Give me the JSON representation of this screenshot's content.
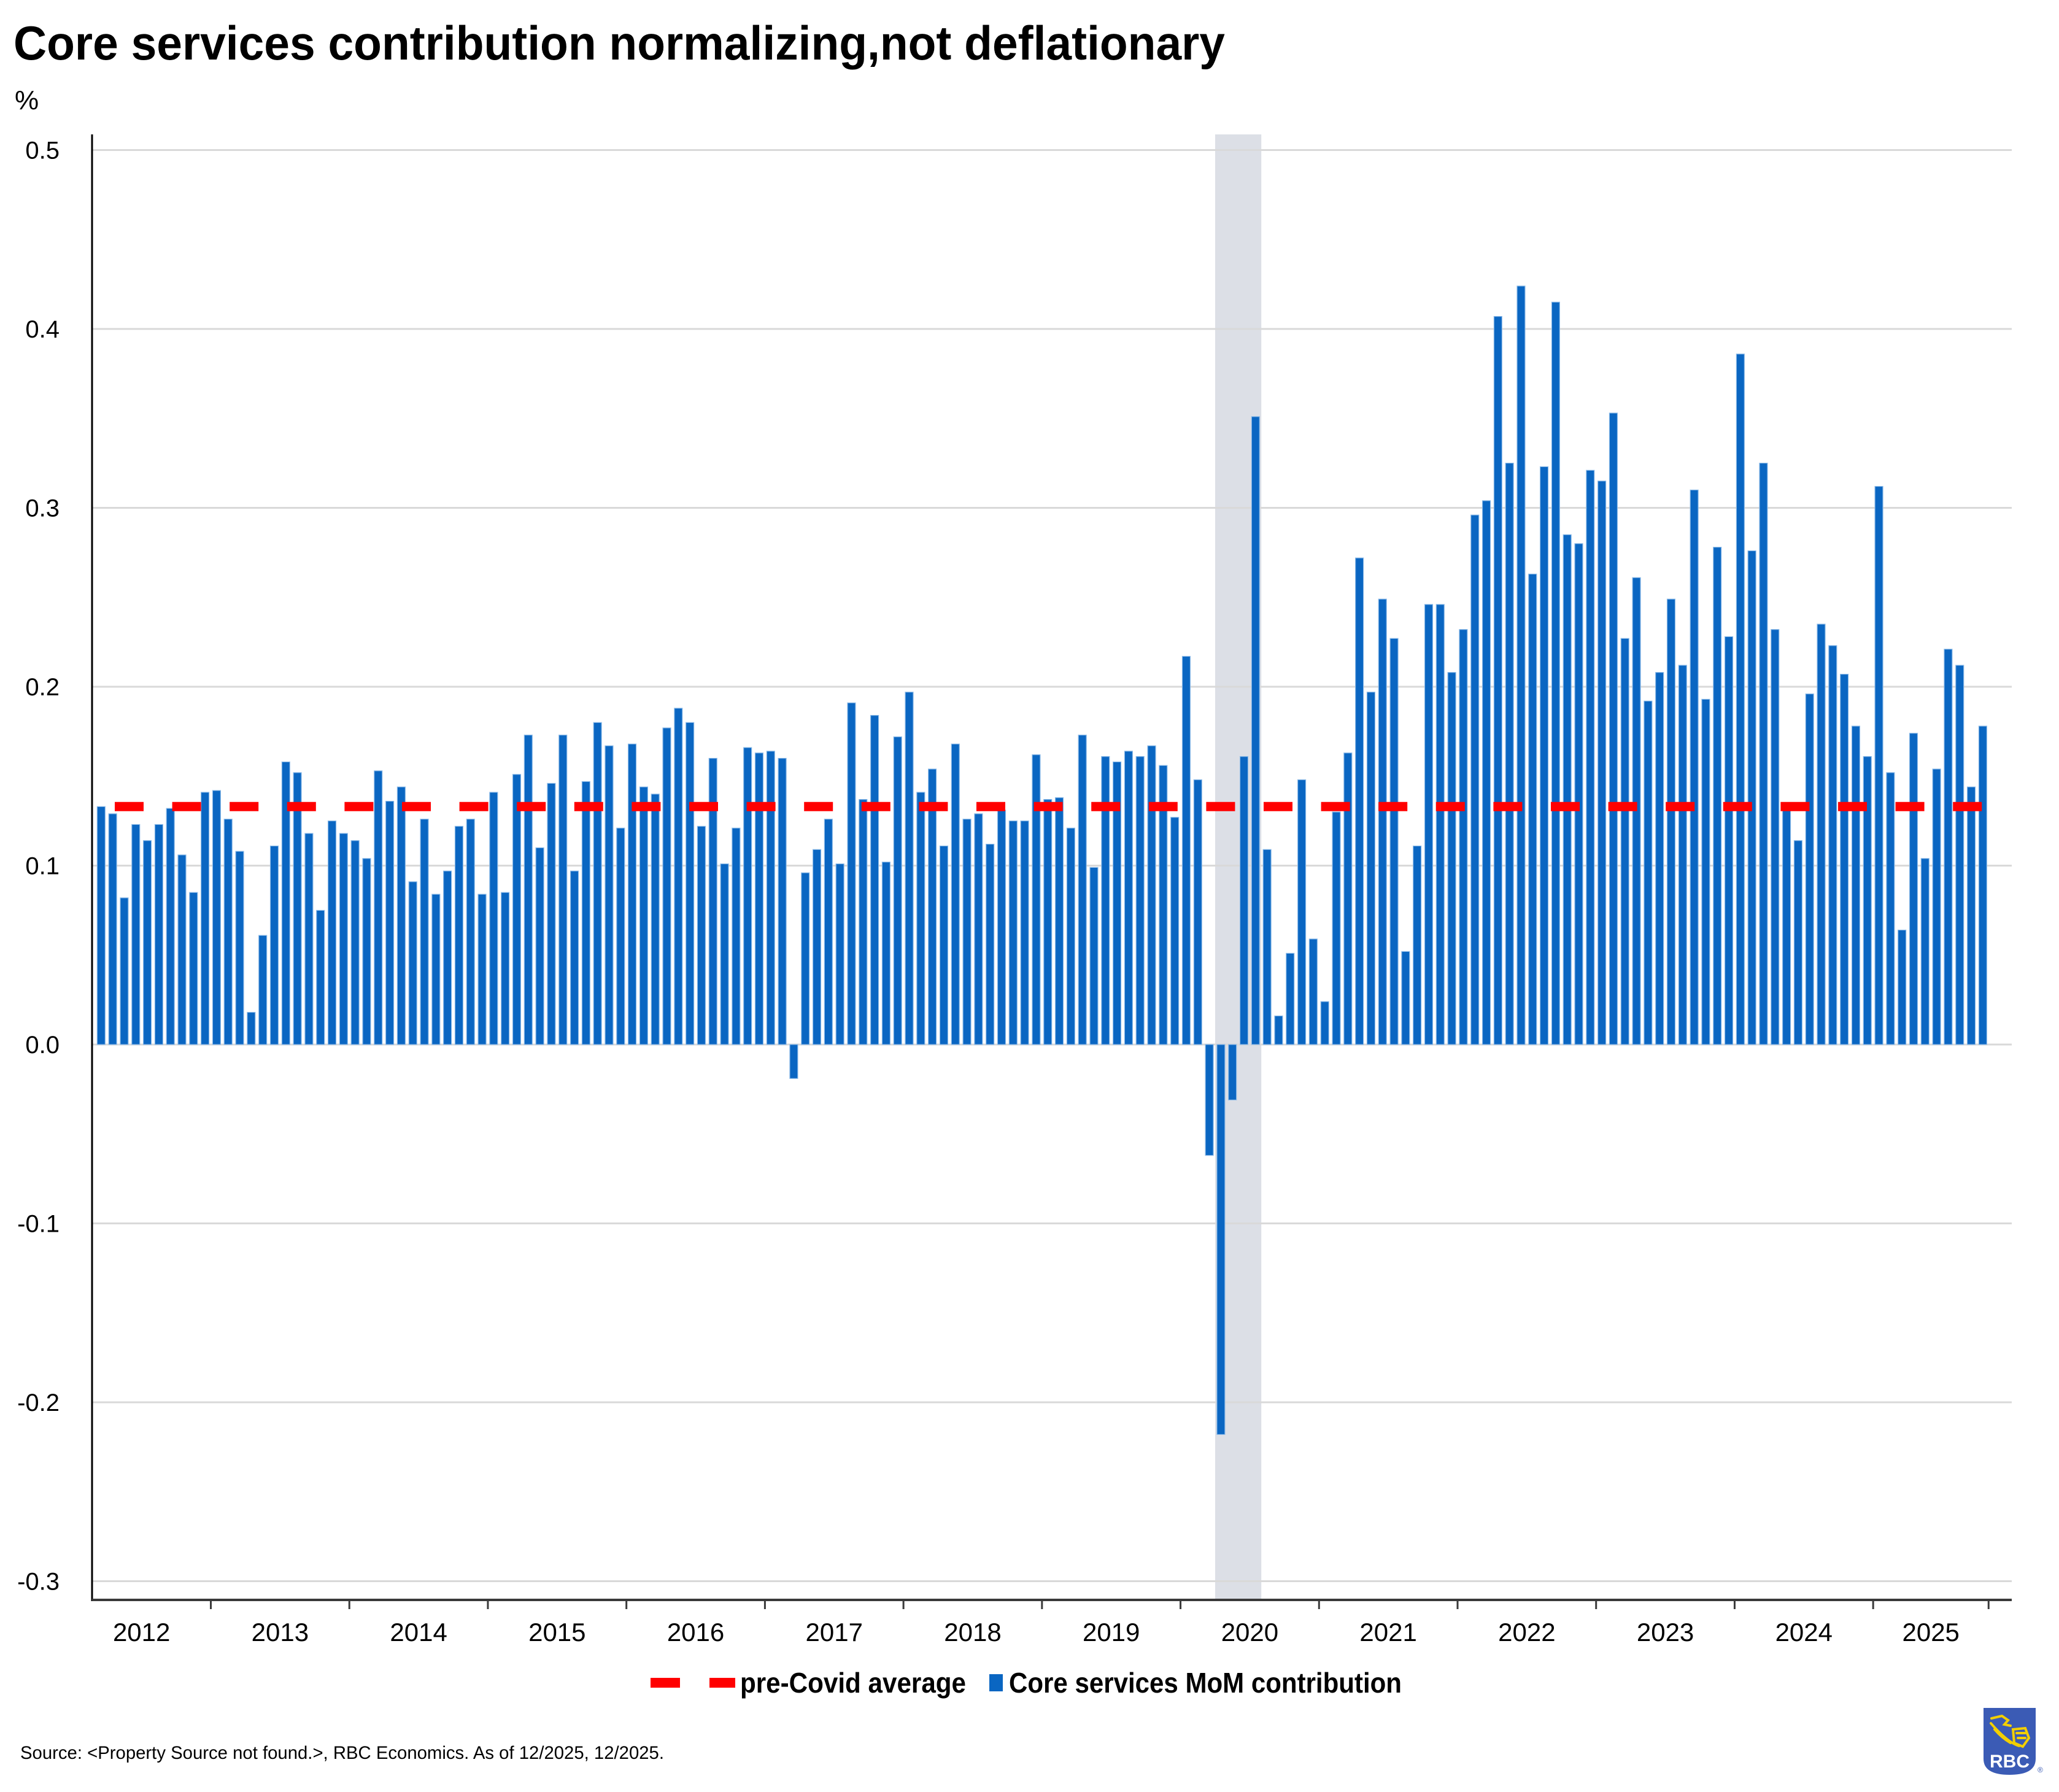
{
  "chart_data": {
    "type": "bar",
    "title": "Core services contribution normalizing,not deflationary",
    "xlabel": "",
    "ylabel": "%",
    "ylim": [
      -0.3,
      0.5
    ],
    "yticks": [
      0.5,
      0.4,
      0.3,
      0.2,
      0.1,
      0.0,
      -0.1,
      -0.2,
      -0.3
    ],
    "ytick_labels": [
      "0.5",
      "0.4",
      "0.3",
      "0.2",
      "0.1",
      "0.0",
      "-0.1",
      "-0.2",
      "-0.3"
    ],
    "xtick_labels": [
      "2012",
      "2013",
      "2014",
      "2015",
      "2016",
      "2017",
      "2018",
      "2019",
      "2020",
      "2021",
      "2022",
      "2023",
      "2024",
      "2025"
    ],
    "frequency": "monthly",
    "grid": true,
    "legend_position": "bottom",
    "categories": [
      "2012-03",
      "2012-04",
      "2012-05",
      "2012-06",
      "2012-07",
      "2012-08",
      "2012-09",
      "2012-10",
      "2012-11",
      "2012-12",
      "2013-01",
      "2013-02",
      "2013-03",
      "2013-04",
      "2013-05",
      "2013-06",
      "2013-07",
      "2013-08",
      "2013-09",
      "2013-10",
      "2013-11",
      "2013-12",
      "2014-01",
      "2014-02",
      "2014-03",
      "2014-04",
      "2014-05",
      "2014-06",
      "2014-07",
      "2014-08",
      "2014-09",
      "2014-10",
      "2014-11",
      "2014-12",
      "2015-01",
      "2015-02",
      "2015-03",
      "2015-04",
      "2015-05",
      "2015-06",
      "2015-07",
      "2015-08",
      "2015-09",
      "2015-10",
      "2015-11",
      "2015-12",
      "2016-01",
      "2016-02",
      "2016-03",
      "2016-04",
      "2016-05",
      "2016-06",
      "2016-07",
      "2016-08",
      "2016-09",
      "2016-10",
      "2016-11",
      "2016-12",
      "2017-01",
      "2017-02",
      "2017-03",
      "2017-04",
      "2017-05",
      "2017-06",
      "2017-07",
      "2017-08",
      "2017-09",
      "2017-10",
      "2017-11",
      "2017-12",
      "2018-01",
      "2018-02",
      "2018-03",
      "2018-04",
      "2018-05",
      "2018-06",
      "2018-07",
      "2018-08",
      "2018-09",
      "2018-10",
      "2018-11",
      "2018-12",
      "2019-01",
      "2019-02",
      "2019-03",
      "2019-04",
      "2019-05",
      "2019-06",
      "2019-07",
      "2019-08",
      "2019-09",
      "2019-10",
      "2019-11",
      "2019-12",
      "2020-01",
      "2020-02",
      "2020-03",
      "2020-04",
      "2020-05",
      "2020-06",
      "2020-07",
      "2020-08",
      "2020-09",
      "2020-10",
      "2020-11",
      "2020-12",
      "2021-01",
      "2021-02",
      "2021-03",
      "2021-04",
      "2021-05",
      "2021-06",
      "2021-07",
      "2021-08",
      "2021-09",
      "2021-10",
      "2021-11",
      "2021-12",
      "2022-01",
      "2022-02",
      "2022-03",
      "2022-04",
      "2022-05",
      "2022-06",
      "2022-07",
      "2022-08",
      "2022-09",
      "2022-10",
      "2022-11",
      "2022-12",
      "2023-01",
      "2023-02",
      "2023-03",
      "2023-04",
      "2023-05",
      "2023-06",
      "2023-07",
      "2023-08",
      "2023-09",
      "2023-10",
      "2023-11",
      "2023-12",
      "2024-01",
      "2024-02",
      "2024-03",
      "2024-04",
      "2024-05",
      "2024-06",
      "2024-07",
      "2024-08",
      "2024-09",
      "2024-10",
      "2024-11",
      "2024-12",
      "2025-01",
      "2025-02",
      "2025-03",
      "2025-04",
      "2025-05",
      "2025-06",
      "2025-07",
      "2025-08",
      "2025-09",
      "2025-10"
    ],
    "series": [
      {
        "name": "Core services MoM contribution",
        "type": "bar",
        "color": "#0a66c2",
        "values": [
          0.133,
          0.129,
          0.082,
          0.123,
          0.114,
          0.123,
          0.132,
          0.106,
          0.085,
          0.141,
          0.142,
          0.126,
          0.108,
          0.018,
          0.061,
          0.111,
          0.158,
          0.152,
          0.118,
          0.075,
          0.125,
          0.118,
          0.114,
          0.104,
          0.153,
          0.136,
          0.144,
          0.091,
          0.126,
          0.084,
          0.097,
          0.122,
          0.126,
          0.084,
          0.141,
          0.085,
          0.151,
          0.173,
          0.11,
          0.146,
          0.173,
          0.097,
          0.147,
          0.18,
          0.167,
          0.121,
          0.168,
          0.144,
          0.14,
          0.177,
          0.188,
          0.18,
          0.122,
          0.16,
          0.101,
          0.121,
          0.166,
          0.163,
          0.164,
          0.16,
          -0.019,
          0.096,
          0.109,
          0.126,
          0.101,
          0.191,
          0.137,
          0.184,
          0.102,
          0.172,
          0.197,
          0.141,
          0.154,
          0.111,
          0.168,
          0.126,
          0.129,
          0.112,
          0.131,
          0.125,
          0.125,
          0.162,
          0.137,
          0.138,
          0.121,
          0.173,
          0.099,
          0.161,
          0.158,
          0.164,
          0.161,
          0.167,
          0.156,
          0.127,
          0.217,
          0.148,
          -0.062,
          -0.218,
          -0.031,
          0.161,
          0.351,
          0.109,
          0.016,
          0.051,
          0.148,
          0.059,
          0.024,
          0.13,
          0.163,
          0.272,
          0.197,
          0.249,
          0.227,
          0.052,
          0.111,
          0.246,
          0.246,
          0.208,
          0.232,
          0.296,
          0.304,
          0.407,
          0.325,
          0.424,
          0.263,
          0.323,
          0.415,
          0.285,
          0.28,
          0.321,
          0.315,
          0.353,
          0.227,
          0.261,
          0.192,
          0.208,
          0.249,
          0.212,
          0.31,
          0.193,
          0.278,
          0.228,
          0.386,
          0.276,
          0.325,
          0.232,
          0.132,
          0.114,
          0.196,
          0.235,
          0.223,
          0.207,
          0.178,
          0.161,
          0.312,
          0.152,
          0.064,
          0.174,
          0.104,
          0.154,
          0.221,
          0.212,
          0.144,
          0.178
        ]
      },
      {
        "name": "pre-Covid average",
        "type": "line",
        "style": "dashed",
        "color": "#ff0000",
        "value": 0.133
      }
    ],
    "shaded_period": {
      "start": "2020-04",
      "end": "2020-07",
      "color": "#dcdfe6"
    },
    "legend": [
      {
        "label": "pre-Covid average",
        "marker": "dashed-line",
        "color": "#ff0000"
      },
      {
        "label": "Core services MoM contribution",
        "marker": "square",
        "color": "#0a66c2"
      }
    ]
  },
  "footer": {
    "source": "Source: <Property Source not found.>, RBC Economics. As of 12/2025, 12/2025."
  },
  "logo": {
    "text": "RBC",
    "registered": "®",
    "colors": {
      "shield": "#3b5bb5",
      "lion": "#f2cf00"
    }
  }
}
